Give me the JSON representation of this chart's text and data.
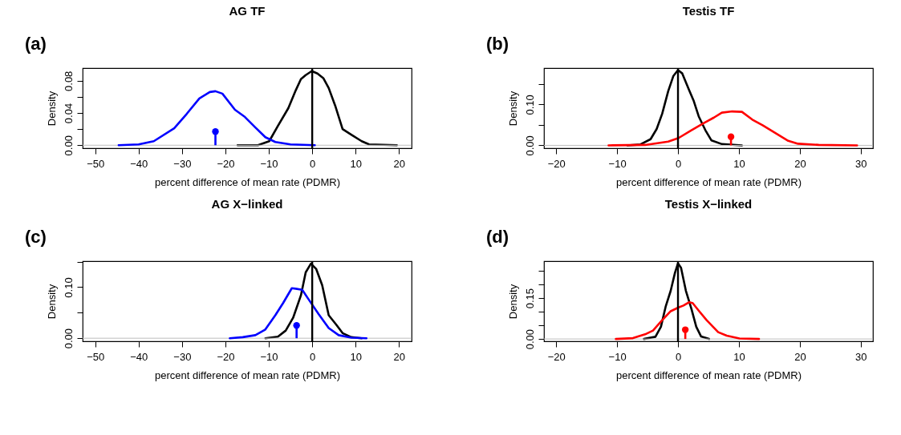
{
  "chart_data": [
    {
      "type": "line",
      "title": "AG TF",
      "xlabel": "percent difference of mean rate (PDMR)",
      "ylabel": "Density",
      "annotations": [
        "(a)"
      ],
      "xlim": [
        -52.9,
        22.9
      ],
      "xticks": [
        -50,
        -40,
        -30,
        -20,
        -10,
        0,
        10,
        20
      ],
      "ylim": [
        -0.0037,
        0.0957
      ],
      "yticks": [
        {
          "value": 0,
          "label": "0.00"
        },
        {
          "value": 0.02,
          "label": null
        },
        {
          "value": 0.04,
          "label": "0.04"
        },
        {
          "value": 0.06,
          "label": null
        },
        {
          "value": 0.08,
          "label": "0.08"
        }
      ],
      "grid": false,
      "line_style": "solid",
      "ref_lines": [
        {
          "axis": "x",
          "value": 0,
          "color": "#000000"
        },
        {
          "axis": "y",
          "value": 0,
          "color": "#bebebe"
        }
      ],
      "series": [
        {
          "color": "#000000",
          "x": [
            -17.2,
            -12.5,
            -9.9,
            -7.9,
            -5.5,
            -3.8,
            -2.6,
            -1.5,
            -0.1,
            1.2,
            2.6,
            3.8,
            5.3,
            7.0,
            9.0,
            11.4,
            13.1,
            19.5
          ],
          "values": [
            0,
            0,
            0.005,
            0.024,
            0.046,
            0.068,
            0.082,
            0.087,
            0.092,
            0.089,
            0.083,
            0.071,
            0.049,
            0.02,
            0.013,
            0.005,
            0.001,
            0
          ]
        },
        {
          "color": "#0000ff",
          "x": [
            -44.6,
            -40,
            -36.5,
            -31.8,
            -28.9,
            -26.0,
            -23.6,
            -22.3,
            -20.7,
            -17.8,
            -15.5,
            -13.1,
            -10.8,
            -8.5,
            -5.0,
            0.6
          ],
          "values": [
            0,
            0.001,
            0.005,
            0.021,
            0.039,
            0.058,
            0.066,
            0.067,
            0.064,
            0.044,
            0.035,
            0.022,
            0.01,
            0.004,
            0.001,
            0
          ]
        },
        {
          "type": "lollipop",
          "color": "#0000ff",
          "marker": "circle",
          "x": [
            -22.3
          ],
          "values": [
            0.017
          ]
        }
      ]
    },
    {
      "type": "line",
      "title": "Testis TF",
      "xlabel": "percent difference of mean rate (PDMR)",
      "ylabel": "Density",
      "annotations": [
        "(b)"
      ],
      "xlim": [
        -22,
        32
      ],
      "xticks": [
        -20,
        -10,
        0,
        10,
        20,
        30
      ],
      "ylim": [
        -0.007,
        0.189
      ],
      "yticks": [
        {
          "value": 0,
          "label": "0.00"
        },
        {
          "value": 0.05,
          "label": null
        },
        {
          "value": 0.1,
          "label": "0.10"
        },
        {
          "value": 0.15,
          "label": null
        }
      ],
      "grid": false,
      "line_style": "solid",
      "ref_lines": [
        {
          "axis": "x",
          "value": 0,
          "color": "#000000"
        },
        {
          "axis": "y",
          "value": 0,
          "color": "#bebebe"
        }
      ],
      "series": [
        {
          "color": "#000000",
          "x": [
            -8.3,
            -6.2,
            -4.5,
            -3.5,
            -2.6,
            -1.6,
            -0.75,
            0,
            0.7,
            1.8,
            2.6,
            3.4,
            4.5,
            5.5,
            7.2,
            10.5
          ],
          "values": [
            0,
            0.002,
            0.015,
            0.04,
            0.077,
            0.133,
            0.17,
            0.184,
            0.176,
            0.136,
            0.108,
            0.071,
            0.037,
            0.012,
            0.003,
            0
          ]
        },
        {
          "color": "#ff0000",
          "x": [
            -11.4,
            -5.4,
            -1.6,
            0.1,
            2.2,
            4.3,
            5.9,
            7.2,
            8.9,
            10.5,
            12.2,
            13.9,
            16.0,
            18.1,
            19.7,
            23.1,
            29.4
          ],
          "values": [
            0,
            0.001,
            0.009,
            0.018,
            0.037,
            0.055,
            0.068,
            0.08,
            0.083,
            0.082,
            0.063,
            0.049,
            0.03,
            0.011,
            0.004,
            0.001,
            0
          ]
        },
        {
          "type": "lollipop",
          "color": "#ff0000",
          "marker": "circle",
          "x": [
            8.7
          ],
          "values": [
            0.021
          ]
        }
      ]
    },
    {
      "type": "line",
      "title": "AG X−linked",
      "xlabel": "percent difference of mean rate (PDMR)",
      "ylabel": "Density",
      "annotations": [
        "(c)"
      ],
      "xlim": [
        -52.9,
        22.9
      ],
      "xticks": [
        -50,
        -40,
        -30,
        -20,
        -10,
        0,
        10,
        20
      ],
      "ylim": [
        -0.006,
        0.151
      ],
      "yticks": [
        {
          "value": 0,
          "label": "0.00"
        },
        {
          "value": 0.05,
          "label": null
        },
        {
          "value": 0.1,
          "label": "0.10"
        },
        {
          "value": 0.15,
          "label": null
        }
      ],
      "grid": false,
      "line_style": "solid",
      "ref_lines": [
        {
          "axis": "x",
          "value": 0,
          "color": "#000000"
        },
        {
          "axis": "y",
          "value": 0,
          "color": "#bebebe"
        }
      ],
      "series": [
        {
          "color": "#000000",
          "x": [
            -10.8,
            -7.9,
            -6.1,
            -4.4,
            -2.6,
            -1.5,
            -0.3,
            0.9,
            2.3,
            3.8,
            5.5,
            7.0,
            9.0,
            11.4
          ],
          "values": [
            0,
            0.003,
            0.015,
            0.04,
            0.084,
            0.129,
            0.146,
            0.136,
            0.104,
            0.045,
            0.027,
            0.01,
            0.002,
            0
          ]
        },
        {
          "color": "#0000ff",
          "x": [
            -19.0,
            -16.0,
            -13.1,
            -10.8,
            -8.5,
            -6.7,
            -4.7,
            -3.8,
            -2.3,
            -0.9,
            1.5,
            3.8,
            6.1,
            9.0,
            12.5
          ],
          "values": [
            0,
            0.002,
            0.006,
            0.017,
            0.045,
            0.069,
            0.098,
            0.097,
            0.095,
            0.077,
            0.047,
            0.02,
            0.006,
            0.001,
            0
          ]
        },
        {
          "type": "lollipop",
          "color": "#0000ff",
          "marker": "circle",
          "x": [
            -3.6
          ],
          "values": [
            0.025
          ]
        }
      ]
    },
    {
      "type": "line",
      "title": "Testis X−linked",
      "xlabel": "percent difference of mean rate (PDMR)",
      "ylabel": "Density",
      "annotations": [
        "(d)"
      ],
      "xlim": [
        -22,
        32
      ],
      "xticks": [
        -20,
        -10,
        0,
        10,
        20,
        30
      ],
      "ylim": [
        -0.0085,
        0.286
      ],
      "yticks": [
        {
          "value": 0,
          "label": "0.00"
        },
        {
          "value": 0.05,
          "label": null
        },
        {
          "value": 0.1,
          "label": null
        },
        {
          "value": 0.15,
          "label": "0.15"
        },
        {
          "value": 0.2,
          "label": null
        },
        {
          "value": 0.25,
          "label": null
        }
      ],
      "grid": false,
      "line_style": "solid",
      "ref_lines": [
        {
          "axis": "x",
          "value": 0,
          "color": "#000000"
        },
        {
          "axis": "y",
          "value": 0,
          "color": "#bebebe"
        }
      ],
      "series": [
        {
          "color": "#000000",
          "x": [
            -5.6,
            -3.7,
            -2.8,
            -2.0,
            -1.2,
            -0.5,
            0,
            0.5,
            1.3,
            2.2,
            3.0,
            3.8,
            5.1
          ],
          "values": [
            0,
            0.008,
            0.045,
            0.121,
            0.177,
            0.243,
            0.278,
            0.262,
            0.177,
            0.111,
            0.045,
            0.009,
            0
          ]
        },
        {
          "color": "#ff0000",
          "x": [
            -10.2,
            -7.4,
            -5.4,
            -4.1,
            -2.8,
            -1.2,
            0.1,
            0.9,
            1.8,
            2.4,
            3.4,
            4.7,
            6.6,
            8.0,
            10.1,
            13.3
          ],
          "values": [
            0,
            0.003,
            0.017,
            0.031,
            0.064,
            0.102,
            0.116,
            0.123,
            0.135,
            0.132,
            0.104,
            0.069,
            0.025,
            0.012,
            0.002,
            0
          ]
        },
        {
          "type": "lollipop",
          "color": "#ff0000",
          "marker": "circle",
          "x": [
            1.2
          ],
          "values": [
            0.034
          ]
        }
      ]
    }
  ]
}
